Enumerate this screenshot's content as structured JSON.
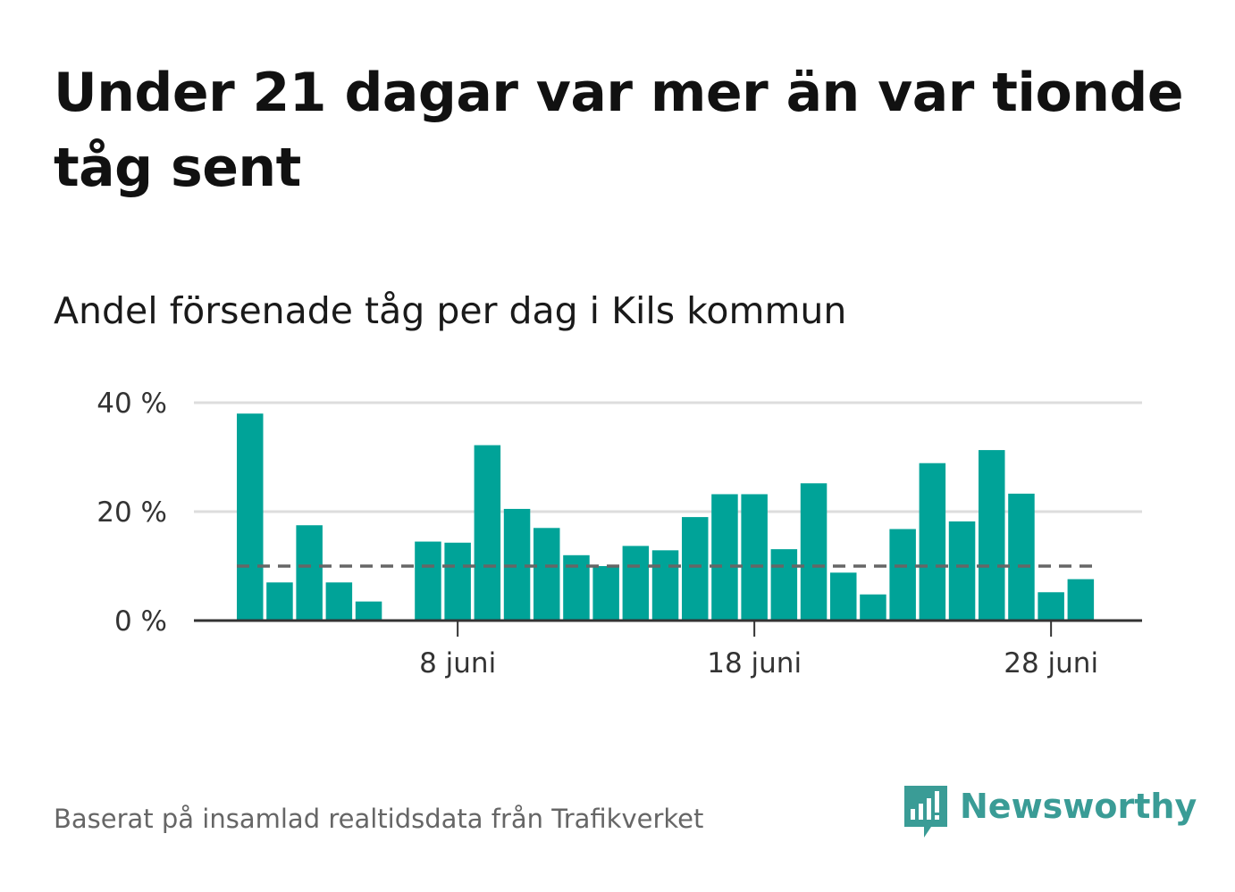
{
  "title": "Under 21 dagar var mer än var tionde tåg sent",
  "subtitle": "Andel försenade tåg per dag i Kils kommun",
  "source": "Baserat på insamlad realtidsdata från Trafikverket",
  "logo": {
    "text": "Newsworthy",
    "icon": "newsworthy-chart-bubble-icon",
    "color": "#3a9c96"
  },
  "colors": {
    "bar": "#00a398",
    "grid": "#dddddd",
    "axis": "#333333",
    "reference": "#666666"
  },
  "chart_data": {
    "type": "bar",
    "title": "Andel försenade tåg per dag i Kils kommun",
    "xlabel": "",
    "ylabel": "",
    "x": [
      "1 juni",
      "2 juni",
      "3 juni",
      "4 juni",
      "5 juni",
      "6 juni",
      "7 juni",
      "8 juni",
      "9 juni",
      "10 juni",
      "11 juni",
      "12 juni",
      "13 juni",
      "14 juni",
      "15 juni",
      "16 juni",
      "17 juni",
      "18 juni",
      "19 juni",
      "20 juni",
      "21 juni",
      "22 juni",
      "23 juni",
      "24 juni",
      "25 juni",
      "26 juni",
      "27 juni",
      "28 juni",
      "29 juni"
    ],
    "values": [
      38,
      7,
      17.5,
      7,
      3.5,
      null,
      14.5,
      14.3,
      32.2,
      20.5,
      17,
      12,
      10,
      13.7,
      12.9,
      19,
      23.2,
      23.2,
      13.1,
      25.2,
      8.8,
      4.8,
      16.8,
      28.9,
      18.2,
      31.3,
      23.3,
      5.2,
      7.6
    ],
    "ylim": [
      0,
      40
    ],
    "yticks": [
      0,
      20,
      40
    ],
    "ytick_labels": [
      "0 %",
      "20 %",
      "40 %"
    ],
    "xticks": [
      "8 juni",
      "18 juni",
      "28 juni"
    ],
    "reference_line": 10,
    "grid": true,
    "legend": "none"
  }
}
